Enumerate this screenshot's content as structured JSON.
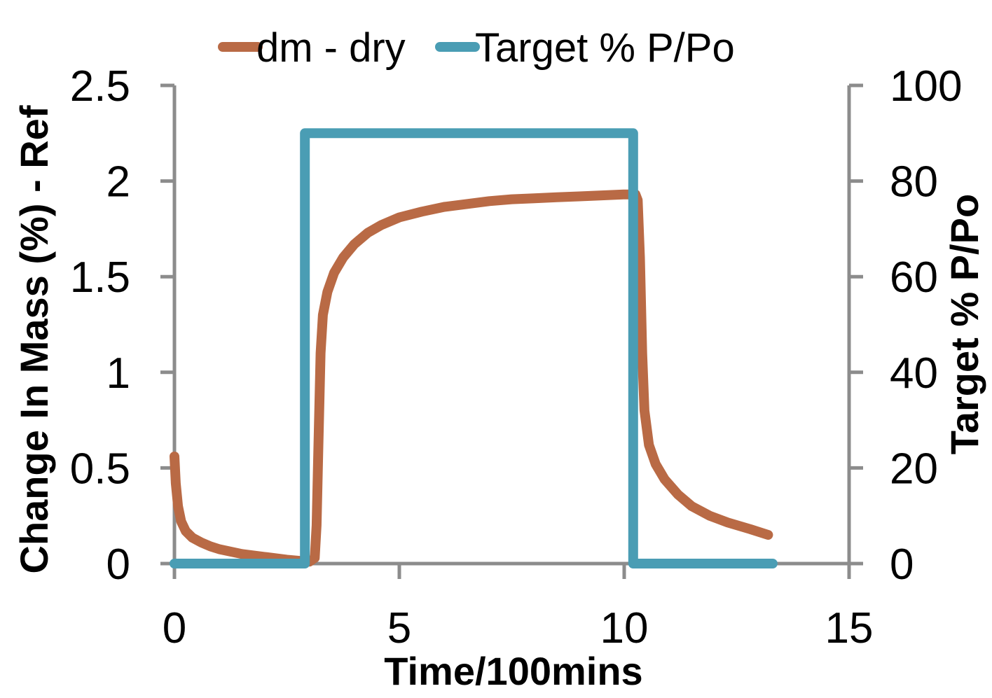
{
  "chart_data": {
    "type": "line",
    "xlabel": "Time/100mins",
    "ylabel": "Change In Mass (%) - Ref",
    "y2label": "Target % P/Po",
    "xlim": [
      0,
      15
    ],
    "ylim": [
      0,
      2.5
    ],
    "y2lim": [
      0,
      100
    ],
    "xticks": [
      "0",
      "5",
      "10",
      "15"
    ],
    "yticks": [
      "0",
      "0.5",
      "1",
      "1.5",
      "2",
      "2.5"
    ],
    "y2ticks": [
      "0",
      "20",
      "40",
      "60",
      "80",
      "100"
    ],
    "grid": false,
    "legend_position": "top",
    "series": [
      {
        "name": "dm - dry",
        "axis": "left",
        "color": "#B96A45",
        "points": [
          [
            0.0,
            0.56
          ],
          [
            0.03,
            0.42
          ],
          [
            0.08,
            0.3
          ],
          [
            0.15,
            0.22
          ],
          [
            0.25,
            0.17
          ],
          [
            0.4,
            0.135
          ],
          [
            0.6,
            0.11
          ],
          [
            0.8,
            0.09
          ],
          [
            1.0,
            0.075
          ],
          [
            1.5,
            0.05
          ],
          [
            2.0,
            0.035
          ],
          [
            2.5,
            0.02
          ],
          [
            3.0,
            0.01
          ],
          [
            3.12,
            0.03
          ],
          [
            3.16,
            0.2
          ],
          [
            3.2,
            0.6
          ],
          [
            3.25,
            1.1
          ],
          [
            3.3,
            1.3
          ],
          [
            3.4,
            1.42
          ],
          [
            3.55,
            1.52
          ],
          [
            3.75,
            1.6
          ],
          [
            4.0,
            1.67
          ],
          [
            4.3,
            1.73
          ],
          [
            4.6,
            1.77
          ],
          [
            5.0,
            1.81
          ],
          [
            5.5,
            1.84
          ],
          [
            6.0,
            1.865
          ],
          [
            6.5,
            1.88
          ],
          [
            7.0,
            1.895
          ],
          [
            7.5,
            1.905
          ],
          [
            8.0,
            1.91
          ],
          [
            8.5,
            1.915
          ],
          [
            9.0,
            1.92
          ],
          [
            9.5,
            1.925
          ],
          [
            10.0,
            1.93
          ],
          [
            10.25,
            1.93
          ],
          [
            10.3,
            1.9
          ],
          [
            10.35,
            1.6
          ],
          [
            10.4,
            1.1
          ],
          [
            10.45,
            0.8
          ],
          [
            10.55,
            0.62
          ],
          [
            10.7,
            0.52
          ],
          [
            10.9,
            0.44
          ],
          [
            11.2,
            0.36
          ],
          [
            11.5,
            0.3
          ],
          [
            11.9,
            0.25
          ],
          [
            12.3,
            0.215
          ],
          [
            12.8,
            0.18
          ],
          [
            13.2,
            0.15
          ]
        ]
      },
      {
        "name": "Target % P/Po",
        "axis": "right",
        "color": "#4A9DB4",
        "points": [
          [
            0.0,
            0
          ],
          [
            2.9,
            0
          ],
          [
            2.9,
            90
          ],
          [
            10.2,
            90
          ],
          [
            10.2,
            0
          ],
          [
            13.3,
            0
          ]
        ]
      }
    ]
  }
}
